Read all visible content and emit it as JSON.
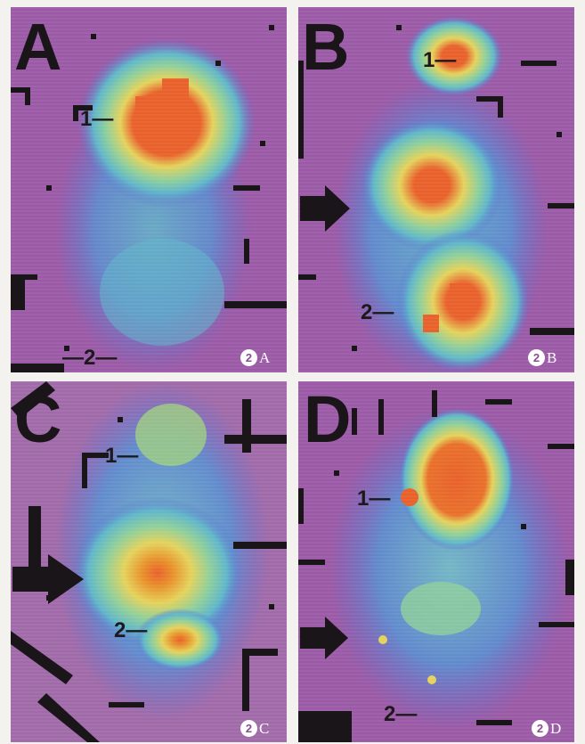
{
  "panels": [
    {
      "letter": "A",
      "figure_number": "2",
      "caption_letter": "A",
      "label_1": "1",
      "label_2": "2"
    },
    {
      "letter": "B",
      "figure_number": "2",
      "caption_letter": "B",
      "label_1": "1",
      "label_2": "2"
    },
    {
      "letter": "C",
      "figure_number": "2",
      "caption_letter": "C",
      "label_1": "1",
      "label_2": "2"
    },
    {
      "letter": "D",
      "figure_number": "2",
      "caption_letter": "D",
      "label_1": "1",
      "label_2": "2"
    }
  ],
  "colors": {
    "background": "#9a5aa6",
    "cold": "#5a6fcf",
    "cool": "#5fb6c9",
    "warm": "#e4d25b",
    "hot": "#e8602a",
    "marks": "#1a1518",
    "gap": "#f4f2ee"
  }
}
